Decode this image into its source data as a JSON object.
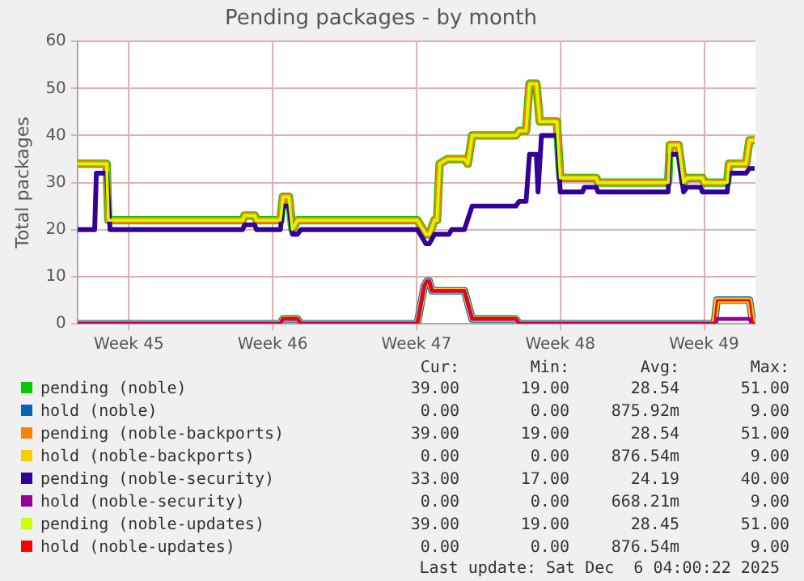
{
  "chart_data": {
    "type": "line",
    "title": "Pending packages - by month",
    "ylabel": "Total packages",
    "xlim": [
      "2025-11-04T00:00",
      "2025-12-07T00:00"
    ],
    "xticks": [
      {
        "value": "2025-11-06T12:00",
        "label": "Week 45"
      },
      {
        "value": "2025-11-13T12:00",
        "label": "Week 46"
      },
      {
        "value": "2025-11-20T12:00",
        "label": "Week 47"
      },
      {
        "value": "2025-11-27T12:00",
        "label": "Week 48"
      },
      {
        "value": "2025-12-04T12:00",
        "label": "Week 49"
      }
    ],
    "ylim": [
      0,
      60
    ],
    "yticks": [
      0,
      10,
      20,
      30,
      40,
      50,
      60
    ],
    "grid": true,
    "legend": "bottom",
    "series": [
      {
        "name": "pending (noble)",
        "color": "#00cc00",
        "x": [
          "2025-11-04T00:00",
          "2025-11-05T10:00",
          "2025-11-05T12:00",
          "2025-11-12T01:00",
          "2025-11-12T03:00",
          "2025-11-12T15:00",
          "2025-11-12T17:00",
          "2025-11-13T21:00",
          "2025-11-14T00:00",
          "2025-11-14T07:00",
          "2025-11-14T11:00",
          "2025-11-14T17:00",
          "2025-11-20T13:00",
          "2025-11-20T23:00",
          "2025-11-21T03:00",
          "2025-11-21T09:00",
          "2025-11-21T12:00",
          "2025-11-21T15:00",
          "2025-11-22T00:00",
          "2025-11-22T20:00",
          "2025-11-23T00:00",
          "2025-11-23T05:00",
          "2025-11-25T08:00",
          "2025-11-25T12:00",
          "2025-11-25T20:00",
          "2025-11-26T00:00",
          "2025-11-26T08:00",
          "2025-11-26T12:00",
          "2025-11-27T08:00",
          "2025-11-27T12:00",
          "2025-11-29T06:00",
          "2025-11-29T08:00",
          "2025-12-02T18:00",
          "2025-12-02T20:00",
          "2025-12-03T06:00",
          "2025-12-03T12:00",
          "2025-12-03T16:00",
          "2025-12-04T10:00",
          "2025-12-04T12:00",
          "2025-12-05T15:00",
          "2025-12-05T17:00",
          "2025-12-06T13:00",
          "2025-12-06T17:00",
          "2025-12-06T23:00"
        ],
        "values": [
          34,
          34,
          22,
          22,
          23,
          23,
          22,
          22,
          27,
          27,
          20,
          22,
          22,
          19,
          19,
          22,
          22,
          34,
          35,
          35,
          34,
          40,
          40,
          41,
          41,
          51,
          51,
          43,
          43,
          31,
          31,
          30,
          30,
          38,
          38,
          30,
          31,
          31,
          30,
          30,
          34,
          34,
          39,
          39
        ]
      },
      {
        "name": "hold (noble)",
        "color": "#0066b3",
        "x": [
          "2025-11-04T00:00",
          "2025-11-13T21:00",
          "2025-11-14T00:00",
          "2025-11-14T17:00",
          "2025-11-14T21:00",
          "2025-11-20T13:00",
          "2025-11-20T21:00",
          "2025-11-21T00:00",
          "2025-11-21T03:00",
          "2025-11-21T06:00",
          "2025-11-22T20:00",
          "2025-11-23T05:00",
          "2025-11-25T08:00",
          "2025-11-25T12:00",
          "2025-12-05T00:00",
          "2025-12-05T03:00",
          "2025-12-06T17:00",
          "2025-12-06T21:00",
          "2025-12-06T23:00"
        ],
        "values": [
          0,
          0,
          1,
          1,
          0,
          0,
          8,
          9,
          9,
          7,
          7,
          1,
          1,
          0,
          0,
          5,
          5,
          0,
          0
        ]
      },
      {
        "name": "pending (noble-backports)",
        "color": "#ff8000",
        "x": [
          "2025-11-04T00:00",
          "2025-11-05T10:00",
          "2025-11-05T12:00",
          "2025-11-12T01:00",
          "2025-11-12T03:00",
          "2025-11-12T15:00",
          "2025-11-12T17:00",
          "2025-11-13T21:00",
          "2025-11-14T00:00",
          "2025-11-14T07:00",
          "2025-11-14T11:00",
          "2025-11-14T17:00",
          "2025-11-20T13:00",
          "2025-11-20T23:00",
          "2025-11-21T03:00",
          "2025-11-21T09:00",
          "2025-11-21T12:00",
          "2025-11-21T15:00",
          "2025-11-22T00:00",
          "2025-11-22T20:00",
          "2025-11-23T00:00",
          "2025-11-23T05:00",
          "2025-11-25T08:00",
          "2025-11-25T12:00",
          "2025-11-25T20:00",
          "2025-11-26T00:00",
          "2025-11-26T08:00",
          "2025-11-26T12:00",
          "2025-11-27T08:00",
          "2025-11-27T12:00",
          "2025-11-29T06:00",
          "2025-11-29T08:00",
          "2025-12-02T18:00",
          "2025-12-02T20:00",
          "2025-12-03T06:00",
          "2025-12-03T12:00",
          "2025-12-03T16:00",
          "2025-12-04T10:00",
          "2025-12-04T12:00",
          "2025-12-05T15:00",
          "2025-12-05T17:00",
          "2025-12-06T13:00",
          "2025-12-06T17:00",
          "2025-12-06T23:00"
        ],
        "values": [
          34,
          34,
          22,
          22,
          23,
          23,
          22,
          22,
          27,
          27,
          20,
          22,
          22,
          19,
          19,
          22,
          22,
          34,
          35,
          35,
          34,
          40,
          40,
          41,
          41,
          51,
          51,
          43,
          43,
          31,
          31,
          30,
          30,
          38,
          38,
          30,
          31,
          31,
          30,
          30,
          34,
          34,
          39,
          39
        ]
      },
      {
        "name": "hold (noble-backports)",
        "color": "#ffcc00",
        "x": [
          "2025-11-04T00:00",
          "2025-11-13T21:00",
          "2025-11-14T00:00",
          "2025-11-14T17:00",
          "2025-11-14T21:00",
          "2025-11-20T13:00",
          "2025-11-20T21:00",
          "2025-11-21T00:00",
          "2025-11-21T03:00",
          "2025-11-21T06:00",
          "2025-11-22T20:00",
          "2025-11-23T05:00",
          "2025-11-25T08:00",
          "2025-11-25T12:00",
          "2025-12-05T00:00",
          "2025-12-05T03:00",
          "2025-12-06T17:00",
          "2025-12-06T21:00",
          "2025-12-06T23:00"
        ],
        "values": [
          0,
          0,
          1,
          1,
          0,
          0,
          8,
          9,
          9,
          7,
          7,
          1,
          1,
          0,
          0,
          5,
          5,
          0,
          0
        ]
      },
      {
        "name": "pending (noble-security)",
        "color": "#330099",
        "x": [
          "2025-11-04T00:00",
          "2025-11-04T20:00",
          "2025-11-04T22:00",
          "2025-11-05T10:00",
          "2025-11-05T14:00",
          "2025-11-12T01:00",
          "2025-11-12T03:00",
          "2025-11-12T15:00",
          "2025-11-12T17:00",
          "2025-11-13T21:00",
          "2025-11-14T00:00",
          "2025-11-14T07:00",
          "2025-11-14T11:00",
          "2025-11-14T17:00",
          "2025-11-14T21:00",
          "2025-11-20T13:00",
          "2025-11-20T23:00",
          "2025-11-21T03:00",
          "2025-11-21T09:00",
          "2025-11-22T02:00",
          "2025-11-22T05:00",
          "2025-11-22T20:00",
          "2025-11-23T05:00",
          "2025-11-25T08:00",
          "2025-11-25T12:00",
          "2025-11-25T20:00",
          "2025-11-26T00:00",
          "2025-11-26T08:00",
          "2025-11-26T10:00",
          "2025-11-26T14:00",
          "2025-11-27T08:00",
          "2025-11-27T12:00",
          "2025-11-28T14:00",
          "2025-11-28T16:00",
          "2025-11-29T06:00",
          "2025-11-29T08:00",
          "2025-12-02T18:00",
          "2025-12-02T20:00",
          "2025-12-03T06:00",
          "2025-12-03T12:00",
          "2025-12-03T16:00",
          "2025-12-04T08:00",
          "2025-12-04T10:00",
          "2025-12-05T15:00",
          "2025-12-05T17:00",
          "2025-12-06T13:00",
          "2025-12-06T17:00",
          "2025-12-06T23:00"
        ],
        "values": [
          20,
          20,
          32,
          32,
          20,
          20,
          21,
          21,
          20,
          20,
          25,
          25,
          19,
          19,
          20,
          20,
          17,
          17,
          19,
          19,
          20,
          20,
          25,
          25,
          26,
          26,
          36,
          36,
          28,
          40,
          40,
          28,
          28,
          29,
          29,
          28,
          28,
          36,
          36,
          28,
          29,
          29,
          28,
          28,
          32,
          32,
          33,
          33
        ]
      },
      {
        "name": "hold (noble-security)",
        "color": "#990099",
        "x": [
          "2025-11-04T00:00",
          "2025-11-13T21:00",
          "2025-11-14T00:00",
          "2025-11-14T17:00",
          "2025-11-14T21:00",
          "2025-11-20T13:00",
          "2025-11-20T21:00",
          "2025-11-21T00:00",
          "2025-11-21T03:00",
          "2025-11-21T06:00",
          "2025-11-22T20:00",
          "2025-11-23T05:00",
          "2025-11-25T08:00",
          "2025-11-25T12:00",
          "2025-12-05T00:00",
          "2025-12-05T03:00",
          "2025-12-06T17:00",
          "2025-12-06T21:00",
          "2025-12-06T23:00"
        ],
        "values": [
          0,
          0,
          1,
          1,
          0,
          0,
          8,
          9,
          9,
          7,
          7,
          1,
          1,
          0,
          0,
          1,
          1,
          0,
          0
        ]
      },
      {
        "name": "pending (noble-updates)",
        "color": "#ccff00",
        "x": [
          "2025-11-04T00:00",
          "2025-11-05T10:00",
          "2025-11-05T12:00",
          "2025-11-12T01:00",
          "2025-11-12T03:00",
          "2025-11-12T15:00",
          "2025-11-12T17:00",
          "2025-11-13T21:00",
          "2025-11-14T00:00",
          "2025-11-14T07:00",
          "2025-11-14T11:00",
          "2025-11-14T17:00",
          "2025-11-20T13:00",
          "2025-11-20T23:00",
          "2025-11-21T03:00",
          "2025-11-21T09:00",
          "2025-11-21T12:00",
          "2025-11-21T15:00",
          "2025-11-22T00:00",
          "2025-11-22T20:00",
          "2025-11-23T00:00",
          "2025-11-23T05:00",
          "2025-11-25T08:00",
          "2025-11-25T12:00",
          "2025-11-25T20:00",
          "2025-11-26T00:00",
          "2025-11-26T08:00",
          "2025-11-26T12:00",
          "2025-11-27T08:00",
          "2025-11-27T12:00",
          "2025-11-29T06:00",
          "2025-11-29T08:00",
          "2025-12-02T18:00",
          "2025-12-02T20:00",
          "2025-12-03T06:00",
          "2025-12-03T12:00",
          "2025-12-03T16:00",
          "2025-12-04T10:00",
          "2025-12-04T12:00",
          "2025-12-05T15:00",
          "2025-12-05T17:00",
          "2025-12-06T13:00",
          "2025-12-06T17:00",
          "2025-12-06T23:00"
        ],
        "values": [
          34,
          34,
          22,
          22,
          23,
          23,
          22,
          22,
          27,
          27,
          20,
          22,
          22,
          19,
          19,
          22,
          22,
          34,
          35,
          35,
          34,
          40,
          40,
          41,
          41,
          51,
          51,
          43,
          43,
          31,
          31,
          30,
          30,
          38,
          38,
          30,
          31,
          31,
          30,
          30,
          34,
          34,
          39,
          39
        ]
      },
      {
        "name": "hold (noble-updates)",
        "color": "#ff0000",
        "x": [
          "2025-11-04T00:00",
          "2025-11-13T21:00",
          "2025-11-14T00:00",
          "2025-11-14T17:00",
          "2025-11-14T21:00",
          "2025-11-20T13:00",
          "2025-11-20T21:00",
          "2025-11-21T00:00",
          "2025-11-21T03:00",
          "2025-11-21T06:00",
          "2025-11-22T20:00",
          "2025-11-23T05:00",
          "2025-11-25T08:00",
          "2025-11-25T12:00",
          "2025-12-05T00:00",
          "2025-12-05T03:00",
          "2025-12-06T17:00",
          "2025-12-06T21:00",
          "2025-12-06T23:00"
        ],
        "values": [
          0,
          0,
          1,
          1,
          0,
          0,
          8,
          9,
          9,
          7,
          7,
          1,
          1,
          0,
          0,
          5,
          5,
          0,
          0
        ]
      }
    ],
    "annotations": [
      "Cur:",
      "Min:",
      "Avg:",
      "Max:",
      "39.00",
      "19.00",
      "28.54",
      "51.00",
      "0.00",
      "0.00",
      "875.92m",
      "9.00",
      "39.00",
      "19.00",
      "28.54",
      "51.00",
      "0.00",
      "0.00",
      "876.54m",
      "9.00",
      "33.00",
      "17.00",
      "24.19",
      "40.00",
      "0.00",
      "0.00",
      "668.21m",
      "9.00",
      "39.00",
      "19.00",
      "28.45",
      "51.00",
      "0.00",
      "0.00",
      "876.54m",
      "9.00",
      "Last update: Sat Dec  6 04:00:22 2025"
    ]
  }
}
